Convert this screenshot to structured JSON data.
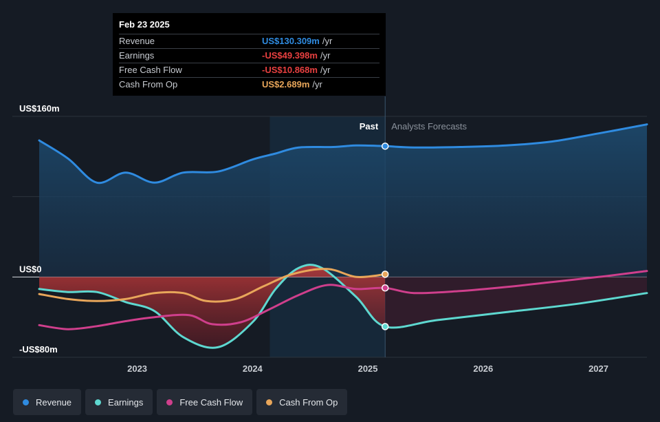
{
  "tooltip": {
    "date": "Feb 23 2025",
    "rows": [
      {
        "label": "Revenue",
        "value": "US$130.309m",
        "unit": "/yr",
        "color": "#2f8be0"
      },
      {
        "label": "Earnings",
        "value": "-US$49.398m",
        "unit": "/yr",
        "color": "#e84040"
      },
      {
        "label": "Free Cash Flow",
        "value": "-US$10.868m",
        "unit": "/yr",
        "color": "#e84040"
      },
      {
        "label": "Cash From Op",
        "value": "US$2.689m",
        "unit": "/yr",
        "color": "#e8a65a"
      }
    ]
  },
  "legend": [
    {
      "label": "Revenue",
      "color": "#2f8be0"
    },
    {
      "label": "Earnings",
      "color": "#5ed8d0"
    },
    {
      "label": "Free Cash Flow",
      "color": "#cf3f8c"
    },
    {
      "label": "Cash From Op",
      "color": "#e8a65a"
    }
  ],
  "chart_data": {
    "type": "line",
    "past_label": "Past",
    "forecast_label": "Analysts Forecasts",
    "y_tick_labels": [
      {
        "value": 160,
        "label": "US$160m"
      },
      {
        "value": 0,
        "label": "US$0"
      },
      {
        "value": -80,
        "label": "-US$80m"
      }
    ],
    "ylim": [
      -80,
      160
    ],
    "xlim": [
      2022.15,
      2027.42
    ],
    "x_ticks": [
      2023,
      2024,
      2025,
      2026,
      2027
    ],
    "divider_x": 2025.15,
    "highlight_start_x": 2024.15,
    "series": [
      {
        "name": "Revenue",
        "color": "#2f8be0",
        "points": [
          [
            2022.15,
            136
          ],
          [
            2022.4,
            118
          ],
          [
            2022.65,
            94
          ],
          [
            2022.9,
            104
          ],
          [
            2023.15,
            94
          ],
          [
            2023.4,
            104
          ],
          [
            2023.7,
            105
          ],
          [
            2024.0,
            117
          ],
          [
            2024.2,
            123
          ],
          [
            2024.4,
            129
          ],
          [
            2024.7,
            129.5
          ],
          [
            2024.9,
            131
          ],
          [
            2025.15,
            130.3
          ],
          [
            2025.4,
            129
          ],
          [
            2025.8,
            129.5
          ],
          [
            2026.2,
            131
          ],
          [
            2026.6,
            135
          ],
          [
            2027.0,
            143
          ],
          [
            2027.42,
            152
          ]
        ],
        "marker": [
          2025.15,
          130.3
        ]
      },
      {
        "name": "Earnings",
        "color": "#5ed8d0",
        "points": [
          [
            2022.15,
            -12
          ],
          [
            2022.4,
            -15
          ],
          [
            2022.65,
            -15
          ],
          [
            2022.9,
            -25
          ],
          [
            2023.15,
            -34
          ],
          [
            2023.4,
            -60
          ],
          [
            2023.7,
            -70
          ],
          [
            2024.0,
            -45
          ],
          [
            2024.2,
            -12
          ],
          [
            2024.4,
            9
          ],
          [
            2024.6,
            9
          ],
          [
            2024.9,
            -20
          ],
          [
            2025.15,
            -49.4
          ],
          [
            2025.6,
            -43
          ],
          [
            2026.2,
            -35
          ],
          [
            2026.8,
            -27
          ],
          [
            2027.42,
            -16
          ]
        ],
        "marker": [
          2025.15,
          -49.4
        ]
      },
      {
        "name": "Free Cash Flow",
        "color": "#cf3f8c",
        "points": [
          [
            2022.15,
            -48
          ],
          [
            2022.4,
            -52
          ],
          [
            2022.65,
            -49
          ],
          [
            2022.9,
            -44
          ],
          [
            2023.15,
            -40
          ],
          [
            2023.45,
            -38
          ],
          [
            2023.65,
            -47
          ],
          [
            2023.9,
            -45
          ],
          [
            2024.15,
            -32
          ],
          [
            2024.4,
            -18
          ],
          [
            2024.65,
            -8
          ],
          [
            2024.9,
            -12
          ],
          [
            2025.15,
            -10.9
          ],
          [
            2025.4,
            -16
          ],
          [
            2025.8,
            -14
          ],
          [
            2026.2,
            -10
          ],
          [
            2026.6,
            -5
          ],
          [
            2027.0,
            0
          ],
          [
            2027.42,
            6
          ]
        ],
        "marker": [
          2025.15,
          -10.9
        ]
      },
      {
        "name": "Cash From Op",
        "color": "#e8a65a",
        "points": [
          [
            2022.15,
            -17
          ],
          [
            2022.4,
            -22
          ],
          [
            2022.65,
            -24
          ],
          [
            2022.9,
            -22
          ],
          [
            2023.15,
            -16
          ],
          [
            2023.4,
            -16
          ],
          [
            2023.6,
            -24
          ],
          [
            2023.85,
            -22
          ],
          [
            2024.1,
            -9
          ],
          [
            2024.35,
            3
          ],
          [
            2024.65,
            8
          ],
          [
            2024.9,
            0
          ],
          [
            2025.15,
            2.7
          ]
        ],
        "marker": [
          2025.15,
          2.7
        ]
      }
    ]
  }
}
